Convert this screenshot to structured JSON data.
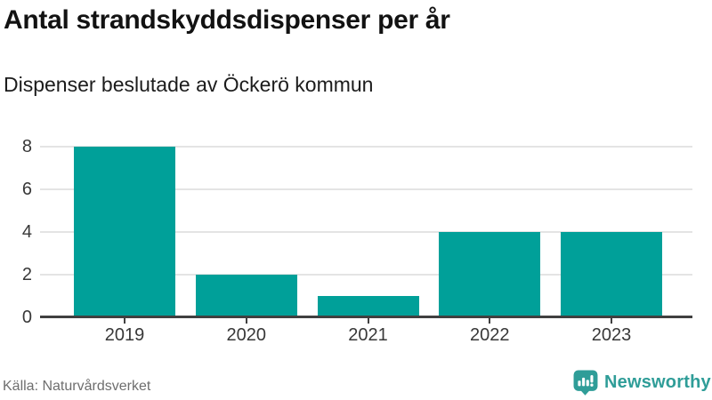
{
  "header": {
    "title": "Antal strandskyddsdispenser per år",
    "subtitle": "Dispenser beslutade av Öckerö kommun"
  },
  "chart_data": {
    "type": "bar",
    "title": "Antal strandskyddsdispenser per år",
    "subtitle": "Dispenser beslutade av Öckerö kommun",
    "categories": [
      "2019",
      "2020",
      "2021",
      "2022",
      "2023"
    ],
    "values": [
      8,
      2,
      1,
      4,
      4
    ],
    "xlabel": "",
    "ylabel": "",
    "ylim": [
      0,
      8
    ],
    "yticks": [
      0,
      2,
      4,
      6,
      8
    ],
    "grid": true,
    "legend": "none",
    "bar_color": "#00a099"
  },
  "footer": {
    "source": "Källa: Naturvårdsverket",
    "brand": "Newsworthy"
  },
  "colors": {
    "bar": "#00a099",
    "brand_teal": "#2f9d98",
    "gridline": "#e4e4e4",
    "axis": "#404040",
    "axis_text": "#383838",
    "title_text": "#121212",
    "source_text": "#6e6e6e",
    "background": "#ffffff"
  }
}
